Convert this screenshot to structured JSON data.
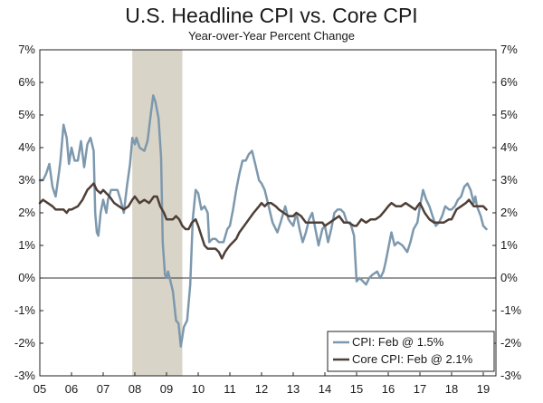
{
  "chart_data": {
    "type": "line",
    "title": "U.S. Headline CPI vs. Core CPI",
    "subtitle": "Year-over-Year Percent Change",
    "y_ticks": [
      "7%",
      "6%",
      "5%",
      "4%",
      "3%",
      "2%",
      "1%",
      "0%",
      "-1%",
      "-2%",
      "-3%"
    ],
    "ylim": [
      -3,
      7
    ],
    "x_ticks": [
      "05",
      "06",
      "07",
      "08",
      "09",
      "10",
      "11",
      "12",
      "13",
      "14",
      "15",
      "16",
      "17",
      "18",
      "19"
    ],
    "x_tick_values": [
      2005,
      2006,
      2007,
      2008,
      2009,
      2010,
      2011,
      2012,
      2013,
      2014,
      2015,
      2016,
      2017,
      2018,
      2019
    ],
    "xlim": [
      2005,
      2019.4
    ],
    "shaded_region": [
      2007.92,
      2009.5
    ],
    "shade_color": "#d9d4c8",
    "legend_position": "bottom-right",
    "series": [
      {
        "name": "CPI: Feb @ 1.5%",
        "color": "#7d98ad",
        "points": [
          [
            2005.0,
            3.0
          ],
          [
            2005.1,
            3.0
          ],
          [
            2005.2,
            3.2
          ],
          [
            2005.3,
            3.5
          ],
          [
            2005.4,
            2.8
          ],
          [
            2005.5,
            2.5
          ],
          [
            2005.6,
            3.2
          ],
          [
            2005.65,
            3.6
          ],
          [
            2005.75,
            4.7
          ],
          [
            2005.85,
            4.3
          ],
          [
            2005.92,
            3.5
          ],
          [
            2006.0,
            4.0
          ],
          [
            2006.1,
            3.6
          ],
          [
            2006.2,
            3.6
          ],
          [
            2006.3,
            4.2
          ],
          [
            2006.4,
            3.4
          ],
          [
            2006.5,
            4.1
          ],
          [
            2006.6,
            4.3
          ],
          [
            2006.7,
            3.9
          ],
          [
            2006.75,
            2.0
          ],
          [
            2006.8,
            1.4
          ],
          [
            2006.85,
            1.3
          ],
          [
            2006.92,
            2.0
          ],
          [
            2007.0,
            2.4
          ],
          [
            2007.1,
            2.0
          ],
          [
            2007.15,
            2.4
          ],
          [
            2007.25,
            2.7
          ],
          [
            2007.35,
            2.7
          ],
          [
            2007.45,
            2.7
          ],
          [
            2007.55,
            2.4
          ],
          [
            2007.65,
            2.0
          ],
          [
            2007.75,
            2.8
          ],
          [
            2007.85,
            3.5
          ],
          [
            2007.92,
            4.3
          ],
          [
            2008.0,
            4.1
          ],
          [
            2008.05,
            4.3
          ],
          [
            2008.15,
            4.0
          ],
          [
            2008.3,
            3.9
          ],
          [
            2008.4,
            4.2
          ],
          [
            2008.5,
            5.0
          ],
          [
            2008.58,
            5.6
          ],
          [
            2008.65,
            5.4
          ],
          [
            2008.75,
            4.9
          ],
          [
            2008.83,
            3.7
          ],
          [
            2008.88,
            1.1
          ],
          [
            2008.95,
            0.1
          ],
          [
            2009.0,
            0.0
          ],
          [
            2009.05,
            0.2
          ],
          [
            2009.1,
            0.0
          ],
          [
            2009.2,
            -0.4
          ],
          [
            2009.3,
            -1.3
          ],
          [
            2009.38,
            -1.4
          ],
          [
            2009.45,
            -2.1
          ],
          [
            2009.55,
            -1.5
          ],
          [
            2009.65,
            -1.3
          ],
          [
            2009.75,
            -0.2
          ],
          [
            2009.83,
            1.8
          ],
          [
            2009.92,
            2.7
          ],
          [
            2010.0,
            2.6
          ],
          [
            2010.1,
            2.1
          ],
          [
            2010.2,
            2.2
          ],
          [
            2010.3,
            2.0
          ],
          [
            2010.35,
            1.1
          ],
          [
            2010.45,
            1.2
          ],
          [
            2010.55,
            1.2
          ],
          [
            2010.65,
            1.1
          ],
          [
            2010.8,
            1.1
          ],
          [
            2010.92,
            1.5
          ],
          [
            2011.0,
            1.6
          ],
          [
            2011.1,
            2.1
          ],
          [
            2011.2,
            2.7
          ],
          [
            2011.3,
            3.2
          ],
          [
            2011.4,
            3.6
          ],
          [
            2011.5,
            3.6
          ],
          [
            2011.6,
            3.8
          ],
          [
            2011.7,
            3.9
          ],
          [
            2011.8,
            3.5
          ],
          [
            2011.92,
            3.0
          ],
          [
            2012.0,
            2.9
          ],
          [
            2012.1,
            2.7
          ],
          [
            2012.2,
            2.3
          ],
          [
            2012.35,
            1.7
          ],
          [
            2012.5,
            1.4
          ],
          [
            2012.6,
            1.7
          ],
          [
            2012.75,
            2.2
          ],
          [
            2012.85,
            1.8
          ],
          [
            2012.92,
            1.7
          ],
          [
            2013.0,
            1.6
          ],
          [
            2013.1,
            2.0
          ],
          [
            2013.2,
            1.5
          ],
          [
            2013.3,
            1.1
          ],
          [
            2013.4,
            1.4
          ],
          [
            2013.5,
            1.8
          ],
          [
            2013.6,
            2.0
          ],
          [
            2013.7,
            1.5
          ],
          [
            2013.8,
            1.0
          ],
          [
            2013.92,
            1.5
          ],
          [
            2014.0,
            1.6
          ],
          [
            2014.1,
            1.1
          ],
          [
            2014.2,
            1.5
          ],
          [
            2014.3,
            2.0
          ],
          [
            2014.4,
            2.1
          ],
          [
            2014.5,
            2.1
          ],
          [
            2014.6,
            2.0
          ],
          [
            2014.7,
            1.7
          ],
          [
            2014.8,
            1.7
          ],
          [
            2014.92,
            1.3
          ],
          [
            2015.0,
            -0.1
          ],
          [
            2015.1,
            0.0
          ],
          [
            2015.2,
            -0.1
          ],
          [
            2015.3,
            -0.2
          ],
          [
            2015.4,
            0.0
          ],
          [
            2015.5,
            0.1
          ],
          [
            2015.65,
            0.2
          ],
          [
            2015.75,
            0.0
          ],
          [
            2015.85,
            0.2
          ],
          [
            2015.92,
            0.5
          ],
          [
            2016.0,
            0.9
          ],
          [
            2016.1,
            1.4
          ],
          [
            2016.2,
            1.0
          ],
          [
            2016.3,
            1.1
          ],
          [
            2016.45,
            1.0
          ],
          [
            2016.6,
            0.8
          ],
          [
            2016.7,
            1.1
          ],
          [
            2016.8,
            1.5
          ],
          [
            2016.92,
            1.7
          ],
          [
            2017.0,
            2.2
          ],
          [
            2017.1,
            2.7
          ],
          [
            2017.2,
            2.4
          ],
          [
            2017.3,
            2.2
          ],
          [
            2017.4,
            1.9
          ],
          [
            2017.5,
            1.6
          ],
          [
            2017.6,
            1.7
          ],
          [
            2017.7,
            1.9
          ],
          [
            2017.8,
            2.2
          ],
          [
            2017.92,
            2.1
          ],
          [
            2018.0,
            2.1
          ],
          [
            2018.1,
            2.2
          ],
          [
            2018.2,
            2.4
          ],
          [
            2018.3,
            2.5
          ],
          [
            2018.4,
            2.8
          ],
          [
            2018.5,
            2.9
          ],
          [
            2018.6,
            2.7
          ],
          [
            2018.7,
            2.3
          ],
          [
            2018.75,
            2.5
          ],
          [
            2018.8,
            2.2
          ],
          [
            2018.92,
            1.9
          ],
          [
            2019.0,
            1.6
          ],
          [
            2019.1,
            1.5
          ]
        ]
      },
      {
        "name": "Core CPI: Feb @ 2.1%",
        "color": "#4e3f37",
        "points": [
          [
            2005.0,
            2.3
          ],
          [
            2005.1,
            2.4
          ],
          [
            2005.25,
            2.3
          ],
          [
            2005.4,
            2.2
          ],
          [
            2005.5,
            2.1
          ],
          [
            2005.6,
            2.1
          ],
          [
            2005.75,
            2.1
          ],
          [
            2005.85,
            2.0
          ],
          [
            2005.92,
            2.1
          ],
          [
            2006.0,
            2.1
          ],
          [
            2006.2,
            2.2
          ],
          [
            2006.35,
            2.4
          ],
          [
            2006.5,
            2.7
          ],
          [
            2006.6,
            2.8
          ],
          [
            2006.7,
            2.9
          ],
          [
            2006.8,
            2.7
          ],
          [
            2006.92,
            2.6
          ],
          [
            2007.0,
            2.7
          ],
          [
            2007.2,
            2.5
          ],
          [
            2007.35,
            2.3
          ],
          [
            2007.5,
            2.2
          ],
          [
            2007.65,
            2.1
          ],
          [
            2007.8,
            2.2
          ],
          [
            2007.92,
            2.4
          ],
          [
            2008.0,
            2.5
          ],
          [
            2008.15,
            2.3
          ],
          [
            2008.3,
            2.4
          ],
          [
            2008.45,
            2.3
          ],
          [
            2008.6,
            2.5
          ],
          [
            2008.7,
            2.5
          ],
          [
            2008.8,
            2.2
          ],
          [
            2008.92,
            2.0
          ],
          [
            2009.0,
            1.8
          ],
          [
            2009.1,
            1.8
          ],
          [
            2009.2,
            1.8
          ],
          [
            2009.3,
            1.9
          ],
          [
            2009.4,
            1.8
          ],
          [
            2009.5,
            1.6
          ],
          [
            2009.6,
            1.5
          ],
          [
            2009.7,
            1.5
          ],
          [
            2009.8,
            1.7
          ],
          [
            2009.92,
            1.8
          ],
          [
            2010.0,
            1.6
          ],
          [
            2010.1,
            1.3
          ],
          [
            2010.2,
            1.0
          ],
          [
            2010.3,
            0.9
          ],
          [
            2010.45,
            0.9
          ],
          [
            2010.55,
            0.9
          ],
          [
            2010.65,
            0.8
          ],
          [
            2010.75,
            0.6
          ],
          [
            2010.85,
            0.8
          ],
          [
            2010.92,
            0.9
          ],
          [
            2011.0,
            1.0
          ],
          [
            2011.1,
            1.1
          ],
          [
            2011.2,
            1.2
          ],
          [
            2011.3,
            1.4
          ],
          [
            2011.45,
            1.6
          ],
          [
            2011.6,
            1.8
          ],
          [
            2011.75,
            2.0
          ],
          [
            2011.92,
            2.2
          ],
          [
            2012.0,
            2.3
          ],
          [
            2012.1,
            2.2
          ],
          [
            2012.2,
            2.3
          ],
          [
            2012.3,
            2.3
          ],
          [
            2012.45,
            2.2
          ],
          [
            2012.55,
            2.1
          ],
          [
            2012.7,
            2.0
          ],
          [
            2012.85,
            1.9
          ],
          [
            2012.92,
            1.9
          ],
          [
            2013.0,
            1.9
          ],
          [
            2013.1,
            2.0
          ],
          [
            2013.25,
            1.9
          ],
          [
            2013.4,
            1.7
          ],
          [
            2013.55,
            1.7
          ],
          [
            2013.7,
            1.7
          ],
          [
            2013.85,
            1.7
          ],
          [
            2013.92,
            1.7
          ],
          [
            2014.0,
            1.6
          ],
          [
            2014.15,
            1.7
          ],
          [
            2014.3,
            1.8
          ],
          [
            2014.45,
            1.9
          ],
          [
            2014.6,
            1.7
          ],
          [
            2014.75,
            1.7
          ],
          [
            2014.92,
            1.6
          ],
          [
            2015.0,
            1.6
          ],
          [
            2015.15,
            1.8
          ],
          [
            2015.3,
            1.7
          ],
          [
            2015.45,
            1.8
          ],
          [
            2015.6,
            1.8
          ],
          [
            2015.75,
            1.9
          ],
          [
            2015.92,
            2.1
          ],
          [
            2016.0,
            2.2
          ],
          [
            2016.1,
            2.3
          ],
          [
            2016.25,
            2.2
          ],
          [
            2016.4,
            2.2
          ],
          [
            2016.55,
            2.3
          ],
          [
            2016.7,
            2.2
          ],
          [
            2016.85,
            2.1
          ],
          [
            2016.92,
            2.2
          ],
          [
            2017.0,
            2.3
          ],
          [
            2017.15,
            2.0
          ],
          [
            2017.3,
            1.8
          ],
          [
            2017.45,
            1.7
          ],
          [
            2017.6,
            1.7
          ],
          [
            2017.75,
            1.7
          ],
          [
            2017.92,
            1.8
          ],
          [
            2018.0,
            1.8
          ],
          [
            2018.15,
            2.1
          ],
          [
            2018.3,
            2.2
          ],
          [
            2018.45,
            2.3
          ],
          [
            2018.55,
            2.4
          ],
          [
            2018.7,
            2.2
          ],
          [
            2018.85,
            2.2
          ],
          [
            2018.92,
            2.2
          ],
          [
            2019.0,
            2.2
          ],
          [
            2019.1,
            2.1
          ]
        ]
      }
    ]
  }
}
